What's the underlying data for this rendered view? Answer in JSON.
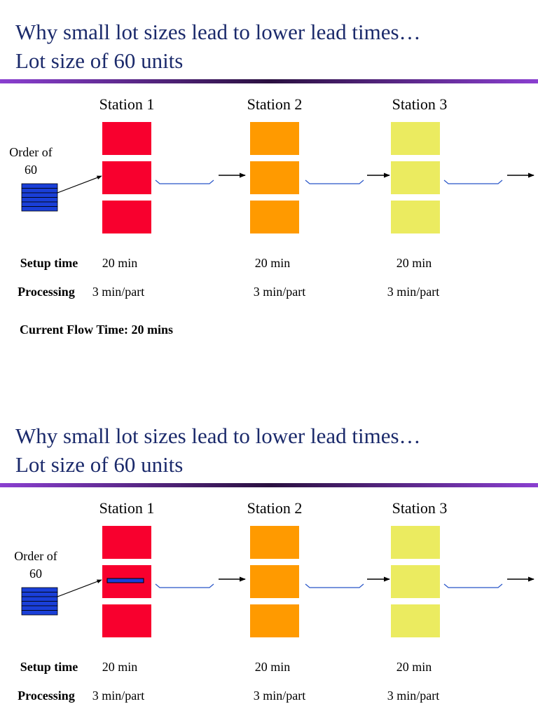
{
  "slides": [
    {
      "title": [
        "Why small lot sizes lead to lower lead times…",
        "Lot size of 60 units"
      ],
      "order": [
        "Order of",
        "60"
      ],
      "stations": [
        "Station 1",
        "Station 2",
        "Station 3"
      ],
      "rows": [
        {
          "label": "Setup time",
          "values": [
            "20 min",
            "20 min",
            "20 min"
          ]
        },
        {
          "label": "Processing",
          "values": [
            "3 min/part",
            "3 min/part",
            "3 min/part"
          ]
        }
      ],
      "flow_time": "Current Flow Time: 20 mins"
    },
    {
      "title": [
        "Why small lot sizes lead to lower lead times…",
        "Lot size of 60 units"
      ],
      "order": [
        "Order of",
        "60"
      ],
      "stations": [
        "Station 1",
        "Station 2",
        "Station 3"
      ],
      "rows": [
        {
          "label": "Setup time",
          "values": [
            "20 min",
            "20 min",
            "20 min"
          ]
        },
        {
          "label": "Processing",
          "values": [
            "3 min/part",
            "3 min/part",
            "3 min/part"
          ]
        }
      ]
    }
  ]
}
